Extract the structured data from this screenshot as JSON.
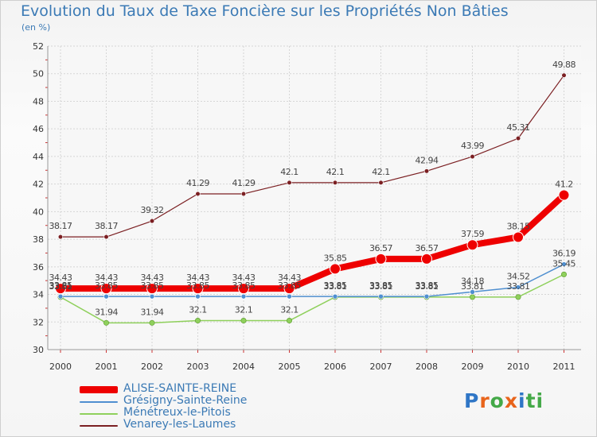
{
  "chart_data": {
    "type": "line",
    "title": "Evolution du Taux de Taxe Foncière sur les Propriétés Non Bâties",
    "ylabel": "(en %)",
    "x": [
      "2000",
      "2001",
      "2002",
      "2003",
      "2004",
      "2005",
      "2006",
      "2007",
      "2008",
      "2009",
      "2010",
      "2011"
    ],
    "ylim": [
      30,
      52
    ],
    "yticks": [
      "30",
      "32",
      "34",
      "36",
      "38",
      "40",
      "42",
      "44",
      "46",
      "48",
      "50",
      "52"
    ],
    "grid": true,
    "legend_position": "bottom-left",
    "series": [
      {
        "name": "ALISE-SAINTE-REINE",
        "color": "#ee0000",
        "values": [
          34.43,
          34.43,
          34.43,
          34.43,
          34.43,
          34.43,
          35.85,
          36.57,
          36.57,
          37.59,
          38.15,
          41.2
        ],
        "labels": [
          "34.43",
          "34.43",
          "34.43",
          "34.43",
          "34.43",
          "34.43",
          "35.85",
          "36.57",
          "36.57",
          "37.59",
          "38.15",
          "41.2"
        ]
      },
      {
        "name": "Grésigny-Sainte-Reine",
        "color": "#4f8fd0",
        "values": [
          33.85,
          33.85,
          33.85,
          33.85,
          33.85,
          33.85,
          33.85,
          33.85,
          33.85,
          34.18,
          34.52,
          36.19
        ],
        "labels": [
          "33.85",
          "33.85",
          "33.85",
          "33.85",
          "33.85",
          "33.85",
          "33.85",
          "33.85",
          "33.85",
          "34.18",
          "34.52",
          "36.19"
        ]
      },
      {
        "name": "Ménétreux-le-Pitois",
        "color": "#8fd05c",
        "values": [
          33.81,
          31.94,
          31.94,
          32.1,
          32.1,
          32.1,
          33.81,
          33.81,
          33.81,
          33.81,
          33.81,
          35.45
        ],
        "labels": [
          "33.81",
          "31.94",
          "31.94",
          "32.1",
          "32.1",
          "32.1",
          "33.81",
          "33.81",
          "33.81",
          "33.81",
          "33.81",
          "35.45"
        ]
      },
      {
        "name": "Venarey-les-Laumes",
        "color": "#7b1f22",
        "values": [
          38.17,
          38.17,
          39.32,
          41.29,
          41.29,
          42.1,
          42.1,
          42.1,
          42.94,
          43.99,
          45.31,
          49.88
        ],
        "labels": [
          "38.17",
          "38.17",
          "39.32",
          "41.29",
          "41.29",
          "42.1",
          "42.1",
          "42.1",
          "42.94",
          "43.99",
          "45.31",
          "49.88"
        ]
      }
    ]
  },
  "logo": {
    "letters": [
      "P",
      "r",
      "o",
      "x",
      "i",
      "ti"
    ]
  }
}
